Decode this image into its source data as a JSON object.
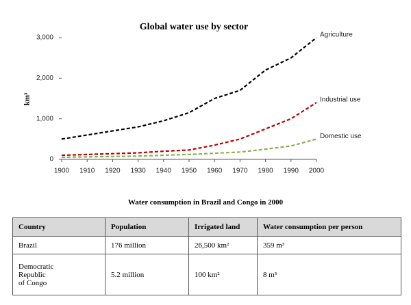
{
  "chart_data": {
    "type": "line",
    "title": "Global water use by sector",
    "y_label": "km³",
    "x": [
      1900,
      1910,
      1920,
      1930,
      1940,
      1950,
      1960,
      1970,
      1980,
      1990,
      2000
    ],
    "series": [
      {
        "name": "Agriculture",
        "color": "#000000",
        "values": [
          500,
          600,
          700,
          800,
          950,
          1150,
          1500,
          1700,
          2200,
          2500,
          3000
        ]
      },
      {
        "name": "Industrial use",
        "color": "#c00000",
        "values": [
          100,
          120,
          140,
          160,
          200,
          230,
          350,
          500,
          750,
          1000,
          1400
        ]
      },
      {
        "name": "Domestic use",
        "color": "#8ab04a",
        "values": [
          50,
          60,
          70,
          80,
          100,
          120,
          150,
          180,
          250,
          330,
          500
        ]
      }
    ],
    "xlim": [
      1900,
      2000
    ],
    "xticks": [
      1900,
      1910,
      1920,
      1930,
      1940,
      1950,
      1960,
      1970,
      1980,
      1990,
      2000
    ],
    "ylim": [
      0,
      3000
    ],
    "yticks": [
      0,
      {
        "value": 1000,
        "label": "1,000"
      },
      {
        "value": 2000,
        "label": "2,000"
      },
      {
        "value": 3000,
        "label": "3,000"
      }
    ],
    "dashed": true
  },
  "table": {
    "caption": "Water consumption in Brazil and Congo in 2000",
    "header": [
      "Country",
      "Population",
      "Irrigated land",
      "Water consumption per person"
    ],
    "rows": [
      [
        "Brazil",
        "176 million",
        "26,500 km²",
        "359 m³"
      ],
      [
        [
          "Democratic",
          "Republic",
          "of Congo"
        ],
        "5.2 million",
        "100 km²",
        "8 m³"
      ]
    ]
  }
}
